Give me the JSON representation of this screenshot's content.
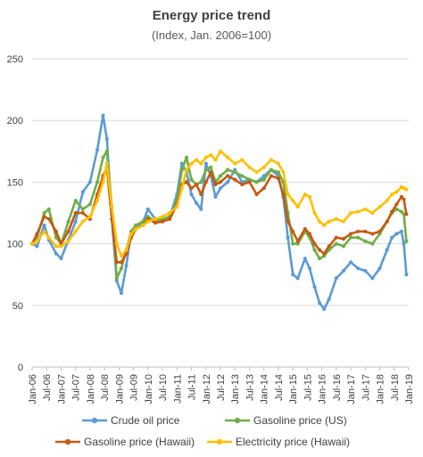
{
  "chart_data": {
    "type": "line",
    "title": "Energy price trend",
    "subtitle": "(Index, Jan. 2006=100)",
    "xlabel": "",
    "ylabel": "",
    "ylim": [
      0,
      250
    ],
    "yticks": [
      0,
      50,
      100,
      150,
      200,
      250
    ],
    "xlim": [
      2006.0,
      2019.0
    ],
    "x_tick_labels": [
      "Jan-06",
      "Jul-06",
      "Jan-07",
      "Jul-07",
      "Jan-08",
      "Jul-08",
      "Jan-09",
      "Jul-09",
      "Jan-10",
      "Jul-10",
      "Jan-11",
      "Jul-11",
      "Jan-12",
      "Jul-12",
      "Jan-13",
      "Jul-13",
      "Jan-14",
      "Jul-14",
      "Jan-15",
      "Jul-15",
      "Jan-16",
      "Jul-16",
      "Jan-17",
      "Jul-17",
      "Jan-18",
      "Jul-18",
      "Jan-19"
    ],
    "grid": "horizontal",
    "legend_position": "bottom",
    "series": [
      {
        "name": "Crude oil price",
        "color": "#5B9BD5",
        "x": [
          2006.0,
          2006.17,
          2006.42,
          2006.58,
          2006.83,
          2007.0,
          2007.25,
          2007.5,
          2007.75,
          2008.0,
          2008.25,
          2008.45,
          2008.58,
          2008.75,
          2008.92,
          2009.08,
          2009.25,
          2009.42,
          2009.58,
          2009.83,
          2010.0,
          2010.25,
          2010.5,
          2010.75,
          2011.0,
          2011.17,
          2011.33,
          2011.5,
          2011.67,
          2011.83,
          2012.0,
          2012.17,
          2012.33,
          2012.5,
          2012.75,
          2013.0,
          2013.25,
          2013.5,
          2013.75,
          2014.0,
          2014.25,
          2014.5,
          2014.67,
          2014.83,
          2015.0,
          2015.17,
          2015.42,
          2015.58,
          2015.75,
          2015.92,
          2016.08,
          2016.25,
          2016.5,
          2016.75,
          2017.0,
          2017.25,
          2017.5,
          2017.75,
          2018.0,
          2018.25,
          2018.42,
          2018.58,
          2018.75,
          2018.83,
          2018.92
        ],
        "values": [
          100,
          98,
          115,
          103,
          92,
          88,
          103,
          118,
          142,
          150,
          176,
          204,
          185,
          120,
          70,
          60,
          82,
          110,
          112,
          118,
          128,
          120,
          118,
          122,
          140,
          165,
          158,
          140,
          133,
          128,
          165,
          155,
          138,
          145,
          150,
          160,
          150,
          152,
          150,
          155,
          160,
          155,
          138,
          105,
          75,
          72,
          88,
          80,
          65,
          52,
          47,
          55,
          72,
          78,
          85,
          80,
          78,
          72,
          80,
          95,
          105,
          108,
          110,
          100,
          75
        ]
      },
      {
        "name": "Gasoline price (US)",
        "color": "#70AD47",
        "x": [
          2006.0,
          2006.17,
          2006.42,
          2006.58,
          2006.83,
          2007.0,
          2007.25,
          2007.5,
          2007.75,
          2008.0,
          2008.25,
          2008.45,
          2008.58,
          2008.75,
          2008.92,
          2009.08,
          2009.25,
          2009.42,
          2009.58,
          2009.83,
          2010.0,
          2010.25,
          2010.5,
          2010.75,
          2011.0,
          2011.17,
          2011.33,
          2011.5,
          2011.67,
          2011.83,
          2012.0,
          2012.17,
          2012.33,
          2012.5,
          2012.75,
          2013.0,
          2013.25,
          2013.5,
          2013.75,
          2014.0,
          2014.25,
          2014.5,
          2014.67,
          2014.83,
          2015.0,
          2015.17,
          2015.42,
          2015.58,
          2015.75,
          2015.92,
          2016.08,
          2016.25,
          2016.5,
          2016.75,
          2017.0,
          2017.25,
          2017.5,
          2017.75,
          2018.0,
          2018.25,
          2018.42,
          2018.58,
          2018.75,
          2018.83,
          2018.92
        ],
        "values": [
          100,
          105,
          125,
          128,
          105,
          100,
          118,
          135,
          128,
          132,
          150,
          170,
          175,
          130,
          72,
          80,
          95,
          110,
          115,
          118,
          122,
          118,
          120,
          122,
          135,
          160,
          170,
          152,
          148,
          150,
          160,
          162,
          150,
          155,
          160,
          158,
          155,
          152,
          150,
          152,
          160,
          158,
          150,
          125,
          100,
          100,
          110,
          105,
          95,
          88,
          90,
          95,
          100,
          98,
          105,
          105,
          102,
          100,
          108,
          118,
          125,
          128,
          126,
          124,
          102
        ]
      },
      {
        "name": "Gasoline price (Hawaii)",
        "color": "#C55A11",
        "x": [
          2006.0,
          2006.17,
          2006.42,
          2006.58,
          2006.83,
          2007.0,
          2007.25,
          2007.5,
          2007.75,
          2008.0,
          2008.25,
          2008.45,
          2008.58,
          2008.75,
          2008.92,
          2009.08,
          2009.25,
          2009.42,
          2009.58,
          2009.83,
          2010.0,
          2010.25,
          2010.5,
          2010.75,
          2011.0,
          2011.17,
          2011.33,
          2011.5,
          2011.67,
          2011.83,
          2012.0,
          2012.17,
          2012.33,
          2012.5,
          2012.75,
          2013.0,
          2013.25,
          2013.5,
          2013.75,
          2014.0,
          2014.25,
          2014.5,
          2014.67,
          2014.83,
          2015.0,
          2015.17,
          2015.42,
          2015.58,
          2015.75,
          2015.92,
          2016.08,
          2016.25,
          2016.5,
          2016.75,
          2017.0,
          2017.25,
          2017.5,
          2017.75,
          2018.0,
          2018.25,
          2018.42,
          2018.58,
          2018.75,
          2018.83,
          2018.92
        ],
        "values": [
          100,
          108,
          122,
          120,
          110,
          100,
          110,
          125,
          125,
          120,
          140,
          155,
          162,
          120,
          85,
          85,
          92,
          105,
          112,
          115,
          120,
          117,
          118,
          120,
          132,
          148,
          150,
          145,
          148,
          140,
          150,
          158,
          148,
          150,
          155,
          152,
          148,
          150,
          140,
          145,
          155,
          153,
          140,
          118,
          110,
          102,
          112,
          108,
          100,
          95,
          92,
          98,
          105,
          104,
          108,
          110,
          110,
          108,
          110,
          118,
          126,
          132,
          138,
          136,
          124
        ]
      },
      {
        "name": "Electricity price (Hawaii)",
        "color": "#FFC000",
        "x": [
          2006.0,
          2006.17,
          2006.42,
          2006.58,
          2006.83,
          2007.0,
          2007.25,
          2007.5,
          2007.75,
          2008.0,
          2008.25,
          2008.45,
          2008.58,
          2008.75,
          2008.92,
          2009.08,
          2009.25,
          2009.42,
          2009.58,
          2009.83,
          2010.0,
          2010.25,
          2010.5,
          2010.75,
          2011.0,
          2011.17,
          2011.33,
          2011.5,
          2011.67,
          2011.83,
          2012.0,
          2012.17,
          2012.33,
          2012.5,
          2012.75,
          2013.0,
          2013.25,
          2013.5,
          2013.75,
          2014.0,
          2014.25,
          2014.5,
          2014.67,
          2014.83,
          2015.0,
          2015.17,
          2015.42,
          2015.58,
          2015.75,
          2015.92,
          2016.08,
          2016.25,
          2016.5,
          2016.75,
          2017.0,
          2017.25,
          2017.5,
          2017.75,
          2018.0,
          2018.25,
          2018.42,
          2018.58,
          2018.75,
          2018.83,
          2018.92
        ],
        "values": [
          100,
          102,
          110,
          105,
          98,
          98,
          102,
          110,
          118,
          122,
          135,
          150,
          165,
          130,
          100,
          90,
          95,
          108,
          112,
          115,
          118,
          120,
          122,
          125,
          130,
          145,
          160,
          165,
          168,
          165,
          170,
          172,
          168,
          175,
          170,
          165,
          168,
          162,
          158,
          162,
          168,
          165,
          158,
          140,
          135,
          130,
          140,
          138,
          125,
          118,
          115,
          118,
          120,
          118,
          125,
          126,
          128,
          125,
          130,
          135,
          140,
          142,
          146,
          145,
          144
        ]
      }
    ]
  }
}
